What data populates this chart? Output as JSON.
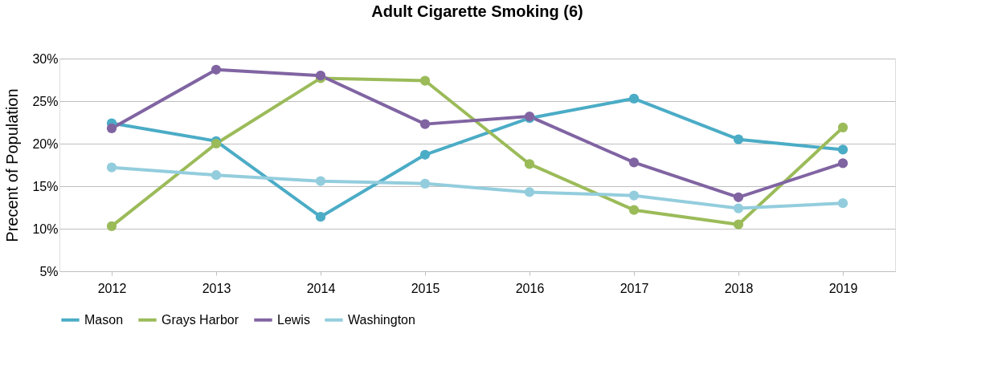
{
  "chart_data": {
    "type": "line",
    "title": "Adult Cigarette Smoking (6)",
    "ylabel": "Precent of Population",
    "categories": [
      "2012",
      "2013",
      "2014",
      "2015",
      "2016",
      "2017",
      "2018",
      "2019"
    ],
    "series": [
      {
        "name": "Mason",
        "color": "#4bacc6",
        "values": [
          22.4,
          20.3,
          11.4,
          18.7,
          23.0,
          25.3,
          20.5,
          19.3
        ]
      },
      {
        "name": "Grays Harbor",
        "color": "#9bbb59",
        "values": [
          10.3,
          20.0,
          27.7,
          27.4,
          17.6,
          12.2,
          10.5,
          21.9
        ]
      },
      {
        "name": "Lewis",
        "color": "#8064a2",
        "values": [
          21.8,
          28.7,
          28.0,
          22.3,
          23.2,
          17.8,
          13.7,
          17.7
        ]
      },
      {
        "name": "Washington",
        "color": "#93cddd",
        "values": [
          17.2,
          16.3,
          15.6,
          15.3,
          14.3,
          13.9,
          12.4,
          13.0
        ]
      }
    ],
    "ylim": [
      5,
      30
    ],
    "yticks": [
      {
        "value": 5,
        "label": "5%"
      },
      {
        "value": 10,
        "label": "10%"
      },
      {
        "value": 15,
        "label": "15%"
      },
      {
        "value": 20,
        "label": "20%"
      },
      {
        "value": 25,
        "label": "25%"
      },
      {
        "value": 30,
        "label": "30%"
      }
    ],
    "grid": "y",
    "legend": "bottom",
    "marker": "circle",
    "line_style": "solid"
  }
}
